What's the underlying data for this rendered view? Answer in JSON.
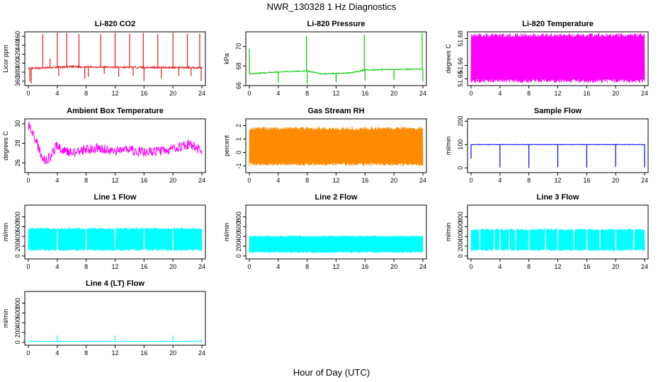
{
  "figure": {
    "title": "NWR_130328  1 Hz Diagnostics",
    "xlabel": "Hour of Day (UTC)"
  },
  "chart_data": [
    {
      "type": "line",
      "title": "Li-820 CO2",
      "ylabel": "Licor ppm",
      "xlim": [
        0,
        24
      ],
      "ylim": [
        350,
        470
      ],
      "xticks": [
        0,
        4,
        8,
        12,
        16,
        20,
        24
      ],
      "yticks": [
        "360",
        "380",
        "400",
        "420",
        "440",
        "460"
      ],
      "color": "#e41a1c",
      "base": 391,
      "noise": 2,
      "drift": [
        [
          0,
          388
        ],
        [
          6,
          392
        ],
        [
          12,
          391
        ],
        [
          24,
          390
        ]
      ],
      "spikes": [
        [
          0.2,
          360
        ],
        [
          0.4,
          355
        ],
        [
          2.0,
          465
        ],
        [
          3.0,
          410
        ],
        [
          4.0,
          468
        ],
        [
          4.2,
          372
        ],
        [
          5.3,
          468
        ],
        [
          6.2,
          395
        ],
        [
          7.0,
          465
        ],
        [
          7.8,
          365
        ],
        [
          8.3,
          370
        ],
        [
          10.0,
          465
        ],
        [
          10.5,
          376
        ],
        [
          12.0,
          468
        ],
        [
          12.5,
          370
        ],
        [
          14.0,
          466
        ],
        [
          14.5,
          372
        ],
        [
          15.9,
          468
        ],
        [
          16.0,
          360
        ],
        [
          17.9,
          465
        ],
        [
          18.4,
          366
        ],
        [
          20.0,
          468
        ],
        [
          20.8,
          372
        ],
        [
          22.0,
          466
        ],
        [
          22.5,
          372
        ],
        [
          23.7,
          466
        ],
        [
          23.9,
          360
        ]
      ]
    },
    {
      "type": "line",
      "title": "Li-820 Pressure",
      "ylabel": "kPa",
      "xlim": [
        0,
        24
      ],
      "ylim": [
        66,
        71.5
      ],
      "xticks": [
        0,
        4,
        8,
        12,
        16,
        20,
        24
      ],
      "yticks": [
        "66",
        "68",
        "70"
      ],
      "color": "#00cc00",
      "base": 67.3,
      "noise": 0.05,
      "drift": [
        [
          0,
          67.2
        ],
        [
          4,
          67.4
        ],
        [
          8,
          67.5
        ],
        [
          10,
          67.2
        ],
        [
          14,
          67.3
        ],
        [
          16,
          67.6
        ],
        [
          24,
          67.7
        ]
      ],
      "spikes": [
        [
          0.0,
          69.8
        ],
        [
          4.0,
          66.3
        ],
        [
          7.9,
          71.1
        ],
        [
          8.0,
          66.2
        ],
        [
          12.0,
          66.3
        ],
        [
          15.9,
          71.2
        ],
        [
          16.0,
          66.5
        ],
        [
          20.0,
          66.6
        ],
        [
          23.9,
          71.4
        ],
        [
          24.0,
          66.4
        ]
      ]
    },
    {
      "type": "line",
      "title": "Li-820 Temperature",
      "ylabel": "degrees C",
      "xlim": [
        0,
        24
      ],
      "ylim": [
        51.645,
        51.685
      ],
      "xticks": [
        0,
        4,
        8,
        12,
        16,
        20,
        24
      ],
      "yticks": [
        "51.65",
        "51.66",
        "51.68"
      ],
      "color": "#ff00ff",
      "base": 51.665,
      "noise": 0.0,
      "oscillate": [
        51.647,
        51.684
      ],
      "spikes": []
    },
    {
      "type": "line",
      "title": "Ambient Box Temperature",
      "ylabel": "degrees C",
      "xlim": [
        0,
        24
      ],
      "ylim": [
        25,
        30.5
      ],
      "xticks": [
        0,
        4,
        8,
        12,
        16,
        20,
        24
      ],
      "yticks": [
        "26",
        "28",
        "30"
      ],
      "color": "#ff00ff",
      "base": 27,
      "noise": 0.5,
      "drift": [
        [
          0,
          29.8
        ],
        [
          1,
          28.5
        ],
        [
          2,
          26.2
        ],
        [
          3,
          26.6
        ],
        [
          4,
          27.8
        ],
        [
          5,
          27.2
        ],
        [
          7,
          27.0
        ],
        [
          8,
          27.4
        ],
        [
          10,
          27.5
        ],
        [
          12,
          27.2
        ],
        [
          14,
          27.3
        ],
        [
          16,
          27.1
        ],
        [
          18,
          27.2
        ],
        [
          20,
          27.4
        ],
        [
          22,
          27.9
        ],
        [
          23,
          27.7
        ],
        [
          24,
          27.1
        ]
      ],
      "spikes": []
    },
    {
      "type": "line",
      "title": "Gas Stream RH",
      "ylabel": "percent",
      "xlim": [
        0,
        24
      ],
      "ylim": [
        -1.5,
        2.5
      ],
      "xticks": [
        0,
        4,
        8,
        12,
        16,
        20,
        24
      ],
      "yticks": [
        "-1",
        "0",
        "1",
        "2"
      ],
      "color": "#ff8c00",
      "base": 0.5,
      "noise": 0.0,
      "oscillate": [
        -1.0,
        1.9
      ],
      "spikes": []
    },
    {
      "type": "line",
      "title": "Sample Flow",
      "ylabel": "ml/min",
      "xlim": [
        0,
        24
      ],
      "ylim": [
        -20,
        210
      ],
      "xticks": [
        0,
        4,
        8,
        12,
        16,
        20,
        24
      ],
      "yticks": [
        "0",
        "100",
        "200"
      ],
      "color": "#0000ff",
      "base": 100,
      "noise": 1,
      "drift": [
        [
          0,
          100
        ],
        [
          24,
          100
        ]
      ],
      "spikes": [
        [
          0.0,
          40
        ],
        [
          4.0,
          2
        ],
        [
          8.0,
          0
        ],
        [
          12.0,
          3
        ],
        [
          16.0,
          1
        ],
        [
          20.0,
          5
        ],
        [
          24.0,
          2
        ]
      ]
    },
    {
      "type": "line",
      "title": "Line 1 Flow",
      "ylabel": "ml/min",
      "xlim": [
        0,
        24
      ],
      "ylim": [
        -60,
        1040
      ],
      "xticks": [
        0,
        4,
        8,
        12,
        16,
        20,
        24
      ],
      "yticks": [
        "0",
        "200",
        "400",
        "600",
        "800"
      ],
      "color": "#00ffff",
      "base": 350,
      "noise": 0.0,
      "oscillate": [
        100,
        580
      ],
      "gaps": [
        4,
        8,
        12,
        16,
        20
      ],
      "spikes": []
    },
    {
      "type": "line",
      "title": "Line 2 Flow",
      "ylabel": "ml/min",
      "xlim": [
        0,
        24
      ],
      "ylim": [
        -60,
        1040
      ],
      "xticks": [
        0,
        4,
        8,
        12,
        16,
        20,
        24
      ],
      "yticks": [
        "0",
        "200",
        "400",
        "600",
        "800"
      ],
      "color": "#00ffff",
      "base": 230,
      "noise": 0.0,
      "oscillate": [
        60,
        420
      ],
      "gaps": [],
      "spikes": []
    },
    {
      "type": "line",
      "title": "Line 3 Flow",
      "ylabel": "ml/min",
      "xlim": [
        0,
        24
      ],
      "ylim": [
        -60,
        1040
      ],
      "xticks": [
        0,
        4,
        8,
        12,
        16,
        20,
        24
      ],
      "yticks": [
        "0",
        "200",
        "400",
        "600",
        "800"
      ],
      "color": "#00ffff",
      "base": 330,
      "noise": 0.0,
      "oscillate": [
        100,
        560
      ],
      "gaps": [
        1.2,
        3.2,
        4,
        5.3,
        6.2,
        8,
        10.3,
        12,
        14.2,
        16,
        17.8,
        20,
        22.5
      ],
      "spikes": []
    },
    {
      "type": "line",
      "title": "Line 4 (LT) Flow",
      "ylabel": "ml/min",
      "xlim": [
        0,
        24
      ],
      "ylim": [
        -60,
        1040
      ],
      "xticks": [
        0,
        4,
        8,
        12,
        16,
        20,
        24
      ],
      "yticks": [
        "0",
        "200",
        "400",
        "600",
        "800"
      ],
      "color": "#00ffff",
      "base": 20,
      "noise": 3,
      "drift": [
        [
          0,
          20
        ],
        [
          24,
          20
        ]
      ],
      "spikes": [
        [
          4.0,
          140
        ],
        [
          12.0,
          140
        ],
        [
          20.0,
          140
        ],
        [
          23.9,
          60
        ]
      ]
    }
  ]
}
